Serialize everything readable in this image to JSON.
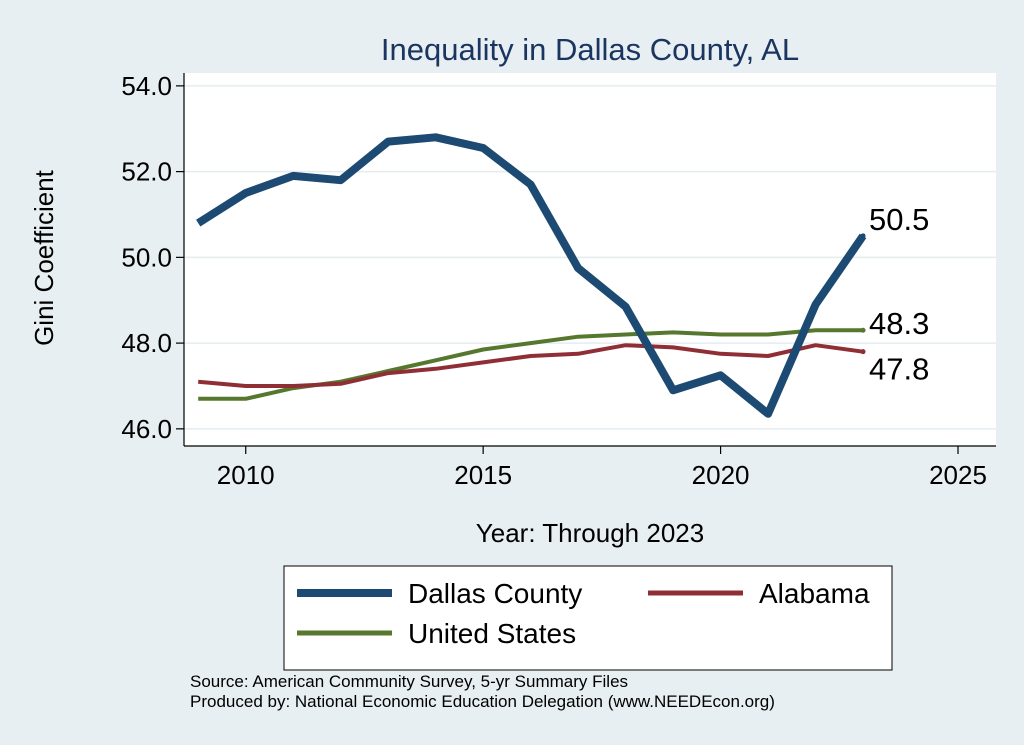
{
  "chart_data": {
    "type": "line",
    "title": "Inequality in Dallas County, AL",
    "xlabel": "Year: Through 2023",
    "ylabel": "Gini Coefficient",
    "xlim": [
      2008.7,
      2025.8
    ],
    "ylim": [
      45.6,
      54.3
    ],
    "xticks": [
      2010,
      2015,
      2020,
      2025
    ],
    "yticks": [
      46.0,
      48.0,
      50.0,
      52.0,
      54.0
    ],
    "ytick_labels": [
      "46.0",
      "48.0",
      "50.0",
      "52.0",
      "54.0"
    ],
    "grid": true,
    "series": [
      {
        "name": "Dallas County",
        "color": "#1c4a72",
        "x": [
          2009,
          2010,
          2011,
          2012,
          2013,
          2014,
          2015,
          2016,
          2017,
          2018,
          2019,
          2020,
          2021,
          2022,
          2023
        ],
        "values": [
          50.8,
          51.5,
          51.9,
          51.8,
          52.7,
          52.8,
          52.55,
          51.7,
          49.75,
          48.85,
          46.9,
          47.25,
          46.35,
          48.9,
          50.5
        ],
        "end_label": "50.5"
      },
      {
        "name": "Alabama",
        "color": "#8f2f35",
        "x": [
          2009,
          2010,
          2011,
          2012,
          2013,
          2014,
          2015,
          2016,
          2017,
          2018,
          2019,
          2020,
          2021,
          2022,
          2023
        ],
        "values": [
          47.1,
          47.0,
          47.0,
          47.05,
          47.3,
          47.4,
          47.55,
          47.7,
          47.75,
          47.95,
          47.9,
          47.75,
          47.7,
          47.95,
          47.8
        ],
        "end_label": "47.8"
      },
      {
        "name": "United States",
        "color": "#56772e",
        "x": [
          2009,
          2010,
          2011,
          2012,
          2013,
          2014,
          2015,
          2016,
          2017,
          2018,
          2019,
          2020,
          2021,
          2022,
          2023
        ],
        "values": [
          46.7,
          46.7,
          46.95,
          47.1,
          47.35,
          47.6,
          47.85,
          48.0,
          48.15,
          48.2,
          48.25,
          48.2,
          48.2,
          48.3,
          48.3
        ],
        "end_label": "48.3"
      }
    ],
    "legend": {
      "placement": "bottom",
      "entries": [
        "Dallas County",
        "Alabama",
        "United States"
      ]
    }
  },
  "footer": {
    "source": "Source: American Community Survey, 5-yr Summary Files",
    "produced_by": "Produced by: National Economic Education Delegation (www.NEEDEcon.org)"
  }
}
